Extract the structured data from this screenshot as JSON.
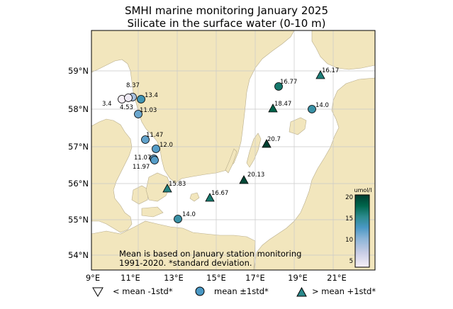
{
  "title": {
    "line1": "SMHI marine monitoring January 2025",
    "line2": "Silicate in the surface water (0-10 m)"
  },
  "note": {
    "line1": "Mean is based on January station monitoring",
    "line2": "1991-2020. *standard deviation."
  },
  "axes": {
    "x_ticks": [
      "9°E",
      "11°E",
      "13°E",
      "15°E",
      "17°E",
      "19°E",
      "21°E"
    ],
    "y_ticks": [
      "59°N",
      "58°N",
      "57°N",
      "56°N",
      "55°N",
      "54°N"
    ]
  },
  "colorbar": {
    "unit": "umol/l",
    "ticks": [
      "20",
      "15",
      "10",
      "5"
    ],
    "min": 4,
    "max": 21,
    "colors": [
      "#f7f0f8",
      "#c9cde5",
      "#8ab4d7",
      "#4a98c4",
      "#2b8a8c",
      "#00664c",
      "#003c2f"
    ]
  },
  "colors": {
    "land": "#f2e6bd",
    "land_edge": "#b8ad8c",
    "grid": "#c9c9c9"
  },
  "stations": [
    {
      "label": "8.37",
      "value": 8.37,
      "marker": "circle"
    },
    {
      "label": "13.4",
      "value": 13.4,
      "marker": "circle"
    },
    {
      "label": "3.4",
      "value": 3.4,
      "marker": "circle"
    },
    {
      "label": "4.53",
      "value": 4.53,
      "marker": "circle"
    },
    {
      "label": "11.03",
      "value": 11.03,
      "marker": "circle"
    },
    {
      "label": "11.47",
      "value": 11.47,
      "marker": "circle"
    },
    {
      "label": "12.0",
      "value": 12.0,
      "marker": "circle"
    },
    {
      "label": "11.07",
      "value": 11.07,
      "marker": "circle"
    },
    {
      "label": "11.97",
      "value": 11.97,
      "marker": "circle"
    },
    {
      "label": "15.83",
      "value": 15.83,
      "marker": "triangle"
    },
    {
      "label": "14.0",
      "value": 14.0,
      "marker": "circle"
    },
    {
      "label": "16.67",
      "value": 16.67,
      "marker": "triangle"
    },
    {
      "label": "20.13",
      "value": 20.13,
      "marker": "triangle"
    },
    {
      "label": "20.7",
      "value": 20.7,
      "marker": "triangle"
    },
    {
      "label": "18.47",
      "value": 18.47,
      "marker": "triangle"
    },
    {
      "label": "16.77",
      "value": 16.77,
      "marker": "circle"
    },
    {
      "label": "16.17",
      "value": 16.17,
      "marker": "triangle"
    },
    {
      "label": "14.0",
      "value": 14.0,
      "marker": "circle"
    }
  ],
  "legend": {
    "below": "< mean -1std*",
    "within": "mean ±1std*",
    "above": "> mean +1std*"
  }
}
